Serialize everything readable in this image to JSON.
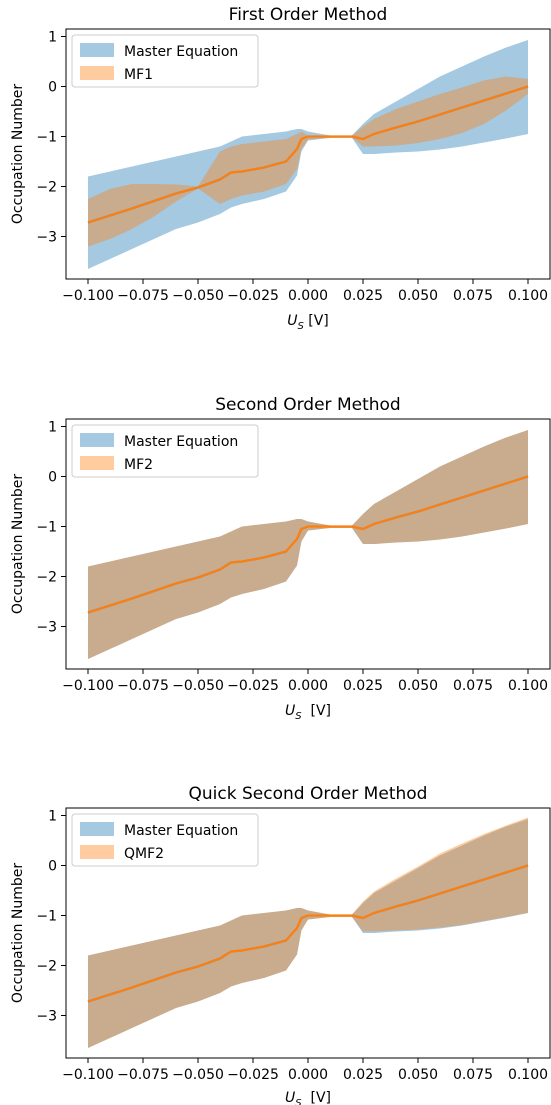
{
  "chart_data": [
    {
      "type": "area",
      "title": "First Order Method",
      "xlabel": "U",
      "xlabel_sub": "S",
      "xlabel_unit": "[V]",
      "ylabel": "Occupation Number",
      "xlim": [
        -0.11,
        0.11
      ],
      "ylim": [
        -3.85,
        1.15
      ],
      "xticks": [
        -0.1,
        -0.075,
        -0.05,
        -0.025,
        0.0,
        0.025,
        0.05,
        0.075,
        0.1
      ],
      "xtick_labels": [
        "−0.100",
        "−0.075",
        "−0.050",
        "−0.025",
        "0.000",
        "0.025",
        "0.050",
        "0.075",
        "0.100"
      ],
      "yticks": [
        1,
        0,
        -1,
        -2,
        -3
      ],
      "ytick_labels": [
        "1",
        "0",
        "−1",
        "−2",
        "−3"
      ],
      "grid": false,
      "legend_position": "top-left",
      "x": [
        -0.1,
        -0.09,
        -0.08,
        -0.07,
        -0.06,
        -0.05,
        -0.04,
        -0.035,
        -0.03,
        -0.02,
        -0.01,
        -0.005,
        -0.003,
        0.0,
        0.01,
        0.02,
        0.025,
        0.03,
        0.04,
        0.05,
        0.06,
        0.07,
        0.08,
        0.09,
        0.1
      ],
      "series": [
        {
          "name": "Master Equation",
          "color": "#1f77b4",
          "band_opacity": 0.4,
          "mean": [
            -2.72,
            -2.58,
            -2.44,
            -2.29,
            -2.14,
            -2.02,
            -1.86,
            -1.72,
            -1.7,
            -1.62,
            -1.5,
            -1.25,
            -1.05,
            -1.0,
            -1.0,
            -1.0,
            -1.05,
            -0.95,
            -0.82,
            -0.7,
            -0.56,
            -0.42,
            -0.28,
            -0.14,
            0.0
          ],
          "upper": [
            -1.8,
            -1.7,
            -1.6,
            -1.5,
            -1.4,
            -1.3,
            -1.2,
            -1.1,
            -1.0,
            -0.95,
            -0.9,
            -0.85,
            -0.85,
            -0.9,
            -0.98,
            -0.98,
            -0.75,
            -0.55,
            -0.3,
            -0.05,
            0.2,
            0.4,
            0.6,
            0.78,
            0.93
          ],
          "lower": [
            -3.65,
            -3.45,
            -3.25,
            -3.05,
            -2.85,
            -2.72,
            -2.55,
            -2.42,
            -2.35,
            -2.25,
            -2.1,
            -1.78,
            -1.3,
            -1.08,
            -1.03,
            -1.03,
            -1.35,
            -1.35,
            -1.32,
            -1.3,
            -1.26,
            -1.2,
            -1.12,
            -1.04,
            -0.95
          ]
        },
        {
          "name": "MF1",
          "color": "#ff7f0e",
          "band_opacity": 0.4,
          "mean": [
            -2.72,
            -2.58,
            -2.44,
            -2.29,
            -2.14,
            -2.02,
            -1.86,
            -1.72,
            -1.7,
            -1.62,
            -1.5,
            -1.25,
            -1.05,
            -1.0,
            -1.0,
            -1.0,
            -1.05,
            -0.95,
            -0.82,
            -0.7,
            -0.56,
            -0.42,
            -0.28,
            -0.14,
            0.0
          ],
          "upper": [
            -2.25,
            -2.05,
            -1.95,
            -1.95,
            -1.96,
            -2.0,
            -1.3,
            -1.2,
            -1.15,
            -1.1,
            -1.05,
            -0.95,
            -0.9,
            -0.98,
            -0.98,
            -0.98,
            -0.8,
            -0.65,
            -0.45,
            -0.3,
            -0.15,
            -0.02,
            0.12,
            0.2,
            0.15
          ],
          "lower": [
            -3.2,
            -3.05,
            -2.85,
            -2.6,
            -2.3,
            -2.04,
            -2.35,
            -2.25,
            -2.18,
            -2.1,
            -1.95,
            -1.65,
            -1.25,
            -1.06,
            -1.02,
            -1.02,
            -1.2,
            -1.2,
            -1.18,
            -1.13,
            -1.05,
            -0.93,
            -0.75,
            -0.48,
            -0.15
          ]
        }
      ]
    },
    {
      "type": "area",
      "title": "Second Order Method",
      "xlabel": "U",
      "xlabel_sub": "S",
      "xlabel_unit": " [V]",
      "ylabel": "Occupation Number",
      "xlim": [
        -0.11,
        0.11
      ],
      "ylim": [
        -3.85,
        1.15
      ],
      "xticks": [
        -0.1,
        -0.075,
        -0.05,
        -0.025,
        0.0,
        0.025,
        0.05,
        0.075,
        0.1
      ],
      "xtick_labels": [
        "−0.100",
        "−0.075",
        "−0.050",
        "−0.025",
        "0.000",
        "0.025",
        "0.050",
        "0.075",
        "0.100"
      ],
      "yticks": [
        1,
        0,
        -1,
        -2,
        -3
      ],
      "ytick_labels": [
        "1",
        "0",
        "−1",
        "−2",
        "−3"
      ],
      "grid": false,
      "legend_position": "top-left",
      "x": [
        -0.1,
        -0.09,
        -0.08,
        -0.07,
        -0.06,
        -0.05,
        -0.04,
        -0.035,
        -0.03,
        -0.02,
        -0.01,
        -0.005,
        -0.003,
        0.0,
        0.01,
        0.02,
        0.025,
        0.03,
        0.04,
        0.05,
        0.06,
        0.07,
        0.08,
        0.09,
        0.1
      ],
      "series": [
        {
          "name": "Master Equation",
          "color": "#1f77b4",
          "band_opacity": 0.4,
          "mean": [
            -2.72,
            -2.58,
            -2.44,
            -2.29,
            -2.14,
            -2.02,
            -1.86,
            -1.72,
            -1.7,
            -1.62,
            -1.5,
            -1.25,
            -1.05,
            -1.0,
            -1.0,
            -1.0,
            -1.05,
            -0.95,
            -0.82,
            -0.7,
            -0.56,
            -0.42,
            -0.28,
            -0.14,
            0.0
          ],
          "upper": [
            -1.8,
            -1.7,
            -1.6,
            -1.5,
            -1.4,
            -1.3,
            -1.2,
            -1.1,
            -1.0,
            -0.95,
            -0.9,
            -0.85,
            -0.85,
            -0.9,
            -0.98,
            -0.98,
            -0.75,
            -0.55,
            -0.3,
            -0.05,
            0.2,
            0.4,
            0.6,
            0.78,
            0.93
          ],
          "lower": [
            -3.65,
            -3.45,
            -3.25,
            -3.05,
            -2.85,
            -2.72,
            -2.55,
            -2.42,
            -2.35,
            -2.25,
            -2.1,
            -1.78,
            -1.3,
            -1.08,
            -1.03,
            -1.03,
            -1.35,
            -1.35,
            -1.32,
            -1.3,
            -1.26,
            -1.2,
            -1.12,
            -1.04,
            -0.95
          ]
        },
        {
          "name": "MF2",
          "color": "#ff7f0e",
          "band_opacity": 0.4,
          "mean": [
            -2.72,
            -2.58,
            -2.44,
            -2.29,
            -2.14,
            -2.02,
            -1.86,
            -1.72,
            -1.7,
            -1.62,
            -1.5,
            -1.25,
            -1.05,
            -1.0,
            -1.0,
            -1.0,
            -1.05,
            -0.95,
            -0.82,
            -0.7,
            -0.56,
            -0.42,
            -0.28,
            -0.14,
            0.0
          ],
          "upper": [
            -1.8,
            -1.7,
            -1.6,
            -1.5,
            -1.4,
            -1.3,
            -1.2,
            -1.1,
            -1.0,
            -0.95,
            -0.9,
            -0.85,
            -0.85,
            -0.9,
            -0.98,
            -0.98,
            -0.75,
            -0.55,
            -0.3,
            -0.05,
            0.2,
            0.4,
            0.6,
            0.78,
            0.93
          ],
          "lower": [
            -3.65,
            -3.45,
            -3.25,
            -3.05,
            -2.85,
            -2.72,
            -2.55,
            -2.42,
            -2.35,
            -2.25,
            -2.1,
            -1.78,
            -1.3,
            -1.08,
            -1.03,
            -1.03,
            -1.35,
            -1.35,
            -1.32,
            -1.3,
            -1.26,
            -1.2,
            -1.12,
            -1.04,
            -0.95
          ]
        }
      ]
    },
    {
      "type": "area",
      "title": "Quick Second Order Method",
      "xlabel": "U",
      "xlabel_sub": "S",
      "xlabel_unit": " [V]",
      "ylabel": "Occupation Number",
      "xlim": [
        -0.11,
        0.11
      ],
      "ylim": [
        -3.85,
        1.15
      ],
      "xticks": [
        -0.1,
        -0.075,
        -0.05,
        -0.025,
        0.0,
        0.025,
        0.05,
        0.075,
        0.1
      ],
      "xtick_labels": [
        "−0.100",
        "−0.075",
        "−0.050",
        "−0.025",
        "0.000",
        "0.025",
        "0.050",
        "0.075",
        "0.100"
      ],
      "yticks": [
        1,
        0,
        -1,
        -2,
        -3
      ],
      "ytick_labels": [
        "1",
        "0",
        "−1",
        "−2",
        "−3"
      ],
      "grid": false,
      "legend_position": "top-left",
      "x": [
        -0.1,
        -0.09,
        -0.08,
        -0.07,
        -0.06,
        -0.05,
        -0.04,
        -0.035,
        -0.03,
        -0.02,
        -0.01,
        -0.005,
        -0.003,
        0.0,
        0.01,
        0.02,
        0.025,
        0.03,
        0.04,
        0.05,
        0.06,
        0.07,
        0.08,
        0.09,
        0.1
      ],
      "series": [
        {
          "name": "Master Equation",
          "color": "#1f77b4",
          "band_opacity": 0.4,
          "mean": [
            -2.72,
            -2.58,
            -2.44,
            -2.29,
            -2.14,
            -2.02,
            -1.86,
            -1.72,
            -1.7,
            -1.62,
            -1.5,
            -1.25,
            -1.05,
            -1.0,
            -1.0,
            -1.0,
            -1.05,
            -0.95,
            -0.82,
            -0.7,
            -0.56,
            -0.42,
            -0.28,
            -0.14,
            0.0
          ],
          "upper": [
            -1.8,
            -1.7,
            -1.6,
            -1.5,
            -1.4,
            -1.3,
            -1.2,
            -1.1,
            -1.0,
            -0.95,
            -0.9,
            -0.85,
            -0.85,
            -0.9,
            -0.98,
            -0.98,
            -0.75,
            -0.55,
            -0.3,
            -0.05,
            0.2,
            0.4,
            0.6,
            0.78,
            0.93
          ],
          "lower": [
            -3.65,
            -3.45,
            -3.25,
            -3.05,
            -2.85,
            -2.72,
            -2.55,
            -2.42,
            -2.35,
            -2.25,
            -2.1,
            -1.78,
            -1.3,
            -1.08,
            -1.03,
            -1.03,
            -1.35,
            -1.35,
            -1.32,
            -1.3,
            -1.26,
            -1.2,
            -1.12,
            -1.04,
            -0.95
          ]
        },
        {
          "name": "QMF2",
          "color": "#ff7f0e",
          "band_opacity": 0.4,
          "mean": [
            -2.72,
            -2.58,
            -2.44,
            -2.29,
            -2.14,
            -2.02,
            -1.86,
            -1.72,
            -1.7,
            -1.62,
            -1.5,
            -1.25,
            -1.05,
            -1.0,
            -1.0,
            -1.0,
            -1.05,
            -0.95,
            -0.82,
            -0.7,
            -0.56,
            -0.42,
            -0.28,
            -0.14,
            0.0
          ],
          "upper": [
            -1.8,
            -1.7,
            -1.6,
            -1.5,
            -1.4,
            -1.3,
            -1.2,
            -1.1,
            -1.0,
            -0.95,
            -0.9,
            -0.85,
            -0.85,
            -0.9,
            -0.98,
            -0.98,
            -0.72,
            -0.52,
            -0.26,
            -0.02,
            0.24,
            0.44,
            0.63,
            0.8,
            0.96
          ],
          "lower": [
            -3.65,
            -3.45,
            -3.25,
            -3.05,
            -2.85,
            -2.72,
            -2.55,
            -2.42,
            -2.35,
            -2.25,
            -2.1,
            -1.78,
            -1.3,
            -1.08,
            -1.03,
            -1.03,
            -1.32,
            -1.32,
            -1.3,
            -1.28,
            -1.24,
            -1.19,
            -1.11,
            -1.03,
            -0.95
          ]
        }
      ]
    }
  ]
}
